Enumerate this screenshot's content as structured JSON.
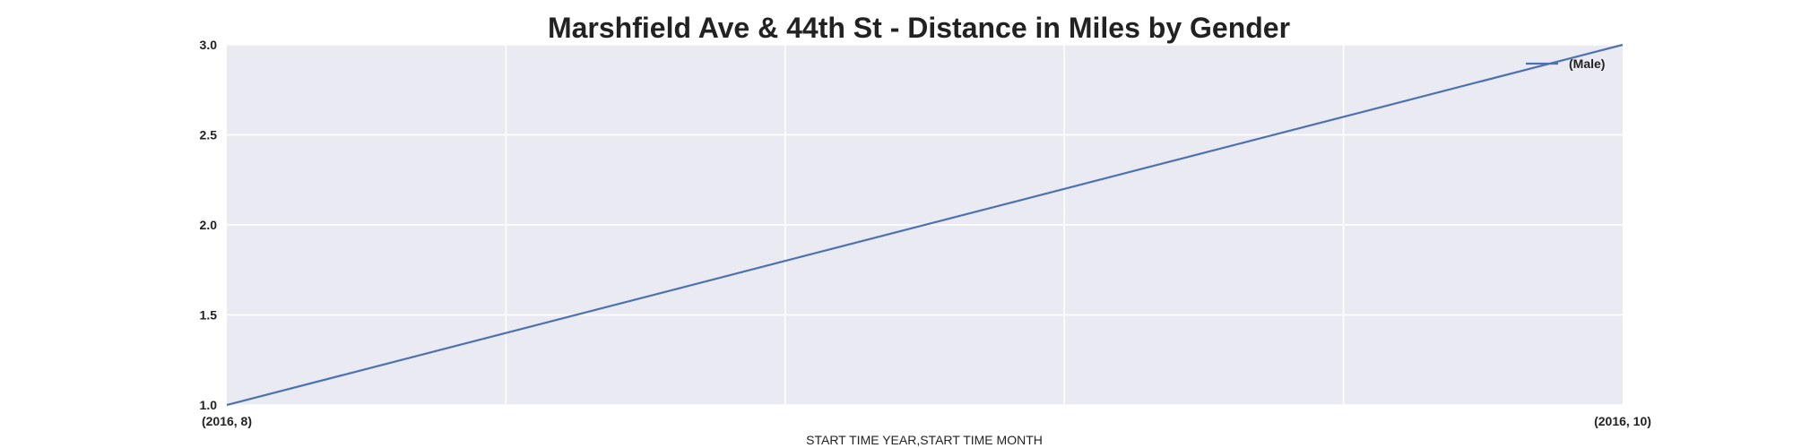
{
  "chart_data": {
    "type": "line",
    "title": "Marshfield Ave & 44th St - Distance in Miles by Gender",
    "xlabel": "START TIME YEAR,START TIME MONTH",
    "ylabel": "",
    "categories": [
      "(2016, 8)",
      "(2016, 10)"
    ],
    "x_tick_labels": [
      "(2016, 8)",
      "(2016, 10)"
    ],
    "y_ticks": [
      "1.0",
      "1.5",
      "2.0",
      "2.5",
      "3.0"
    ],
    "ylim": [
      1.0,
      3.0
    ],
    "grid": true,
    "legend_position": "top-right",
    "series": [
      {
        "name": "(Male)",
        "values": [
          1.0,
          3.0
        ],
        "color": "#4c72b0"
      }
    ],
    "colors": {
      "plot_background": "#eaeaf2",
      "grid": "#ffffff",
      "line": "#4c72b0"
    }
  }
}
